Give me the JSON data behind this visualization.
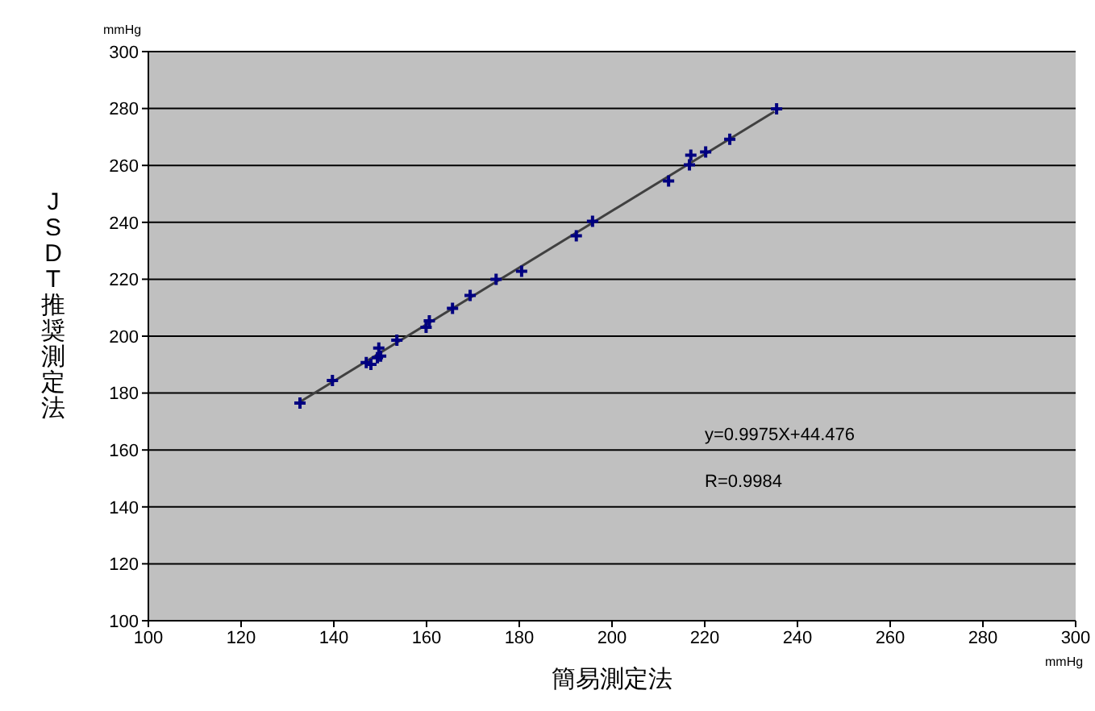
{
  "chart_data": {
    "type": "scatter",
    "xlabel": "簡易測定法",
    "ylabel": "JSDT推奨測定法",
    "annotations": [
      "mmHg",
      "mmHg",
      "y=0.9975X+44.476",
      "R=0.9984"
    ],
    "xlim": [
      100,
      300
    ],
    "xticks": [
      100,
      120,
      140,
      160,
      180,
      200,
      220,
      240,
      260,
      280,
      300
    ],
    "ylim": [
      100,
      300
    ],
    "yticks": [
      100,
      120,
      140,
      160,
      180,
      200,
      220,
      240,
      260,
      280,
      300
    ],
    "grid": "y",
    "series": [
      {
        "marker": "cross",
        "color": "#000080",
        "x": [
          132.7,
          139.7,
          147.0,
          148.0,
          149.7,
          149.4,
          150.1,
          153.6,
          159.9,
          160.6,
          165.6,
          169.4,
          175.0,
          180.5,
          192.3,
          195.8,
          212.2,
          216.7,
          217.0,
          220.2,
          225.4,
          235.5
        ],
        "values": [
          176.5,
          184.4,
          190.7,
          190.1,
          195.8,
          192.4,
          193.0,
          198.6,
          203.1,
          205.4,
          209.8,
          214.3,
          220.0,
          222.8,
          235.3,
          240.4,
          254.5,
          260.2,
          263.6,
          264.7,
          269.2,
          279.9
        ]
      },
      {
        "type": "line",
        "marker": "none",
        "color": "#404040",
        "line_style": "solid",
        "x": [
          133,
          235
        ],
        "values": [
          177.2,
          278.9
        ]
      }
    ]
  }
}
